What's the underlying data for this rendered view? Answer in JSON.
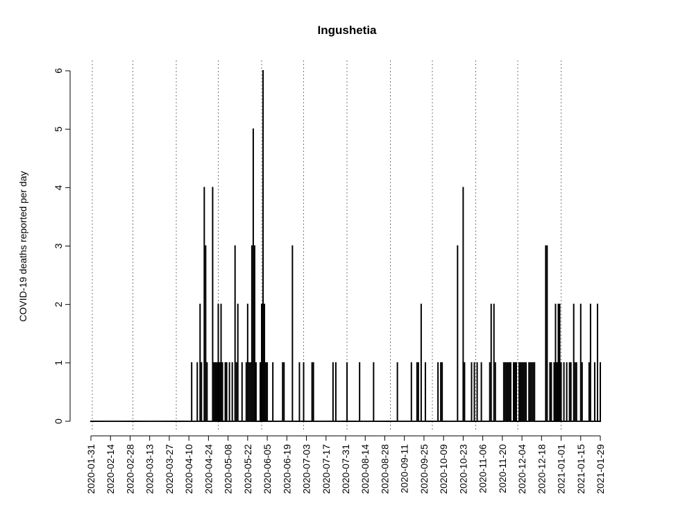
{
  "chart_data": {
    "type": "bar",
    "title": "Ingushetia",
    "y_label": "COVID-19 deaths reported per day",
    "color": "#000000",
    "x": [
      "2020-01-31",
      "2020-02-01",
      "2020-02-02",
      "2020-02-03",
      "2020-02-04",
      "2020-02-05",
      "2020-02-06",
      "2020-02-07",
      "2020-02-08",
      "2020-02-09",
      "2020-02-10",
      "2020-02-11",
      "2020-02-12",
      "2020-02-13",
      "2020-02-14",
      "2020-02-15",
      "2020-02-16",
      "2020-02-17",
      "2020-02-18",
      "2020-02-19",
      "2020-02-20",
      "2020-02-21",
      "2020-02-22",
      "2020-02-23",
      "2020-02-24",
      "2020-02-25",
      "2020-02-26",
      "2020-02-27",
      "2020-02-28",
      "2020-02-29",
      "2020-03-01",
      "2020-03-02",
      "2020-03-03",
      "2020-03-04",
      "2020-03-05",
      "2020-03-06",
      "2020-03-07",
      "2020-03-08",
      "2020-03-09",
      "2020-03-10",
      "2020-03-11",
      "2020-03-12",
      "2020-03-13",
      "2020-03-14",
      "2020-03-15",
      "2020-03-16",
      "2020-03-17",
      "2020-03-18",
      "2020-03-19",
      "2020-03-20",
      "2020-03-21",
      "2020-03-22",
      "2020-03-23",
      "2020-03-24",
      "2020-03-25",
      "2020-03-26",
      "2020-03-27",
      "2020-03-28",
      "2020-03-29",
      "2020-03-30",
      "2020-03-31",
      "2020-04-01",
      "2020-04-02",
      "2020-04-03",
      "2020-04-04",
      "2020-04-05",
      "2020-04-06",
      "2020-04-07",
      "2020-04-08",
      "2020-04-09",
      "2020-04-10",
      "2020-04-11",
      "2020-04-12",
      "2020-04-13",
      "2020-04-14",
      "2020-04-15",
      "2020-04-16",
      "2020-04-17",
      "2020-04-18",
      "2020-04-19",
      "2020-04-20",
      "2020-04-21",
      "2020-04-22",
      "2020-04-23",
      "2020-04-24",
      "2020-04-25",
      "2020-04-26",
      "2020-04-27",
      "2020-04-28",
      "2020-04-29",
      "2020-04-30",
      "2020-05-01",
      "2020-05-02",
      "2020-05-03",
      "2020-05-04",
      "2020-05-05",
      "2020-05-06",
      "2020-05-07",
      "2020-05-08",
      "2020-05-09",
      "2020-05-10",
      "2020-05-11",
      "2020-05-12",
      "2020-05-13",
      "2020-05-14",
      "2020-05-15",
      "2020-05-16",
      "2020-05-17",
      "2020-05-18",
      "2020-05-19",
      "2020-05-20",
      "2020-05-21",
      "2020-05-22",
      "2020-05-23",
      "2020-05-24",
      "2020-05-25",
      "2020-05-26",
      "2020-05-27",
      "2020-05-28",
      "2020-05-29",
      "2020-05-30",
      "2020-05-31",
      "2020-06-01",
      "2020-06-02",
      "2020-06-03",
      "2020-06-04",
      "2020-06-05",
      "2020-06-06",
      "2020-06-07",
      "2020-06-08",
      "2020-06-09",
      "2020-06-10",
      "2020-06-11",
      "2020-06-12",
      "2020-06-13",
      "2020-06-14",
      "2020-06-15",
      "2020-06-16",
      "2020-06-17",
      "2020-06-18",
      "2020-06-19",
      "2020-06-20",
      "2020-06-21",
      "2020-06-22",
      "2020-06-23",
      "2020-06-24",
      "2020-06-25",
      "2020-06-26",
      "2020-06-27",
      "2020-06-28",
      "2020-06-29",
      "2020-06-30",
      "2020-07-01",
      "2020-07-02",
      "2020-07-03",
      "2020-07-04",
      "2020-07-05",
      "2020-07-06",
      "2020-07-07",
      "2020-07-08",
      "2020-07-09",
      "2020-07-10",
      "2020-07-11",
      "2020-07-12",
      "2020-07-13",
      "2020-07-14",
      "2020-07-15",
      "2020-07-16",
      "2020-07-17",
      "2020-07-18",
      "2020-07-19",
      "2020-07-20",
      "2020-07-21",
      "2020-07-22",
      "2020-07-23",
      "2020-07-24",
      "2020-07-25",
      "2020-07-26",
      "2020-07-27",
      "2020-07-28",
      "2020-07-29",
      "2020-07-30",
      "2020-07-31",
      "2020-08-01",
      "2020-08-02",
      "2020-08-03",
      "2020-08-04",
      "2020-08-05",
      "2020-08-06",
      "2020-08-07",
      "2020-08-08",
      "2020-08-09",
      "2020-08-10",
      "2020-08-11",
      "2020-08-12",
      "2020-08-13",
      "2020-08-14",
      "2020-08-15",
      "2020-08-16",
      "2020-08-17",
      "2020-08-18",
      "2020-08-19",
      "2020-08-20",
      "2020-08-21",
      "2020-08-22",
      "2020-08-23",
      "2020-08-24",
      "2020-08-25",
      "2020-08-26",
      "2020-08-27",
      "2020-08-28",
      "2020-08-29",
      "2020-08-30",
      "2020-08-31",
      "2020-09-01",
      "2020-09-02",
      "2020-09-03",
      "2020-09-04",
      "2020-09-05",
      "2020-09-06",
      "2020-09-07",
      "2020-09-08",
      "2020-09-09",
      "2020-09-10",
      "2020-09-11",
      "2020-09-12",
      "2020-09-13",
      "2020-09-14",
      "2020-09-15",
      "2020-09-16",
      "2020-09-17",
      "2020-09-18",
      "2020-09-19",
      "2020-09-20",
      "2020-09-21",
      "2020-09-22",
      "2020-09-23",
      "2020-09-24",
      "2020-09-25",
      "2020-09-26",
      "2020-09-27",
      "2020-09-28",
      "2020-09-29",
      "2020-09-30",
      "2020-10-01",
      "2020-10-02",
      "2020-10-03",
      "2020-10-04",
      "2020-10-05",
      "2020-10-06",
      "2020-10-07",
      "2020-10-08",
      "2020-10-09",
      "2020-10-10",
      "2020-10-11",
      "2020-10-12",
      "2020-10-13",
      "2020-10-14",
      "2020-10-15",
      "2020-10-16",
      "2020-10-17",
      "2020-10-18",
      "2020-10-19",
      "2020-10-20",
      "2020-10-21",
      "2020-10-22",
      "2020-10-23",
      "2020-10-24",
      "2020-10-25",
      "2020-10-26",
      "2020-10-27",
      "2020-10-28",
      "2020-10-29",
      "2020-10-30",
      "2020-10-31",
      "2020-11-01",
      "2020-11-02",
      "2020-11-03",
      "2020-11-04",
      "2020-11-05",
      "2020-11-06",
      "2020-11-07",
      "2020-11-08",
      "2020-11-09",
      "2020-11-10",
      "2020-11-11",
      "2020-11-12",
      "2020-11-13",
      "2020-11-14",
      "2020-11-15",
      "2020-11-16",
      "2020-11-17",
      "2020-11-18",
      "2020-11-19",
      "2020-11-20",
      "2020-11-21",
      "2020-11-22",
      "2020-11-23",
      "2020-11-24",
      "2020-11-25",
      "2020-11-26",
      "2020-11-27",
      "2020-11-28",
      "2020-11-29",
      "2020-11-30",
      "2020-12-01",
      "2020-12-02",
      "2020-12-03",
      "2020-12-04",
      "2020-12-05",
      "2020-12-06",
      "2020-12-07",
      "2020-12-08",
      "2020-12-09",
      "2020-12-10",
      "2020-12-11",
      "2020-12-12",
      "2020-12-13",
      "2020-12-14",
      "2020-12-15",
      "2020-12-16",
      "2020-12-17",
      "2020-12-18",
      "2020-12-19",
      "2020-12-20",
      "2020-12-21",
      "2020-12-22",
      "2020-12-23",
      "2020-12-24",
      "2020-12-25",
      "2020-12-26",
      "2020-12-27",
      "2020-12-28",
      "2020-12-29",
      "2020-12-30",
      "2020-12-31",
      "2021-01-01",
      "2021-01-02",
      "2021-01-03",
      "2021-01-04",
      "2021-01-05",
      "2021-01-06",
      "2021-01-07",
      "2021-01-08",
      "2021-01-09",
      "2021-01-10",
      "2021-01-11",
      "2021-01-12",
      "2021-01-13",
      "2021-01-14",
      "2021-01-15",
      "2021-01-16",
      "2021-01-17",
      "2021-01-18",
      "2021-01-19",
      "2021-01-20",
      "2021-01-21",
      "2021-01-22",
      "2021-01-23",
      "2021-01-24",
      "2021-01-25",
      "2021-01-26",
      "2021-01-27",
      "2021-01-28",
      "2021-01-29"
    ],
    "values": [
      0,
      0,
      0,
      0,
      0,
      0,
      0,
      0,
      0,
      0,
      0,
      0,
      0,
      0,
      0,
      0,
      0,
      0,
      0,
      0,
      0,
      0,
      0,
      0,
      0,
      0,
      0,
      0,
      0,
      0,
      0,
      0,
      0,
      0,
      0,
      0,
      0,
      0,
      0,
      0,
      0,
      0,
      0,
      0,
      0,
      0,
      0,
      0,
      0,
      0,
      0,
      0,
      0,
      0,
      0,
      0,
      0,
      0,
      0,
      0,
      0,
      0,
      0,
      0,
      0,
      0,
      0,
      0,
      0,
      0,
      0,
      0,
      1,
      0,
      0,
      0,
      1,
      0,
      2,
      1,
      0,
      4,
      3,
      1,
      0,
      0,
      0,
      4,
      1,
      1,
      1,
      2,
      1,
      2,
      1,
      0,
      1,
      1,
      0,
      1,
      0,
      1,
      0,
      3,
      1,
      2,
      0,
      0,
      1,
      0,
      0,
      1,
      2,
      1,
      1,
      3,
      5,
      3,
      1,
      0,
      0,
      1,
      2,
      6,
      2,
      1,
      1,
      0,
      0,
      0,
      1,
      0,
      0,
      0,
      0,
      0,
      0,
      1,
      1,
      0,
      0,
      0,
      0,
      0,
      3,
      0,
      0,
      0,
      0,
      1,
      0,
      0,
      1,
      0,
      0,
      0,
      0,
      0,
      1,
      1,
      0,
      0,
      0,
      0,
      0,
      0,
      0,
      0,
      0,
      0,
      0,
      0,
      0,
      1,
      0,
      1,
      0,
      0,
      0,
      0,
      0,
      0,
      0,
      1,
      0,
      0,
      0,
      0,
      0,
      0,
      0,
      0,
      1,
      0,
      0,
      0,
      0,
      0,
      0,
      0,
      0,
      0,
      1,
      0,
      0,
      0,
      0,
      0,
      0,
      0,
      0,
      0,
      0,
      0,
      0,
      0,
      0,
      0,
      0,
      1,
      0,
      0,
      0,
      0,
      0,
      0,
      0,
      0,
      0,
      1,
      0,
      0,
      0,
      1,
      1,
      0,
      2,
      0,
      0,
      1,
      0,
      0,
      0,
      0,
      0,
      0,
      0,
      0,
      1,
      0,
      1,
      1,
      0,
      0,
      0,
      0,
      0,
      0,
      0,
      0,
      0,
      0,
      3,
      0,
      0,
      0,
      4,
      1,
      0,
      0,
      0,
      0,
      1,
      0,
      1,
      0,
      1,
      0,
      0,
      1,
      0,
      0,
      0,
      0,
      0,
      1,
      2,
      0,
      2,
      1,
      0,
      0,
      0,
      0,
      0,
      1,
      1,
      1,
      1,
      1,
      1,
      0,
      1,
      1,
      1,
      0,
      1,
      1,
      1,
      1,
      1,
      1,
      0,
      1,
      1,
      1,
      1,
      1,
      0,
      0,
      0,
      0,
      0,
      0,
      0,
      3,
      3,
      0,
      1,
      1,
      0,
      1,
      2,
      1,
      2,
      2,
      1,
      0,
      1,
      0,
      1,
      0,
      1,
      1,
      0,
      2,
      1,
      1,
      0,
      0,
      2,
      1,
      0,
      0,
      0,
      0,
      1,
      2,
      0,
      0,
      1,
      0,
      2,
      0,
      1
    ],
    "xlim": [
      "2020-01-31",
      "2021-01-29"
    ],
    "xticks": [
      "2020-01-31",
      "2020-02-14",
      "2020-02-28",
      "2020-03-13",
      "2020-03-27",
      "2020-04-10",
      "2020-04-24",
      "2020-05-08",
      "2020-05-22",
      "2020-06-05",
      "2020-06-19",
      "2020-07-03",
      "2020-07-17",
      "2020-07-31",
      "2020-08-14",
      "2020-08-28",
      "2020-09-11",
      "2020-09-25",
      "2020-10-09",
      "2020-10-23",
      "2020-11-06",
      "2020-11-20",
      "2020-12-04",
      "2020-12-18",
      "2021-01-01",
      "2021-01-15",
      "2021-01-29"
    ],
    "vlines": [
      "2020-02-01",
      "2020-03-01",
      "2020-04-01",
      "2020-05-01",
      "2020-06-01",
      "2020-07-01",
      "2020-08-01",
      "2020-09-01",
      "2020-10-01",
      "2020-11-01",
      "2020-12-01",
      "2021-01-01"
    ],
    "ylim": [
      0,
      6
    ],
    "yticks": [
      0,
      1,
      2,
      3,
      4,
      5,
      6
    ]
  }
}
